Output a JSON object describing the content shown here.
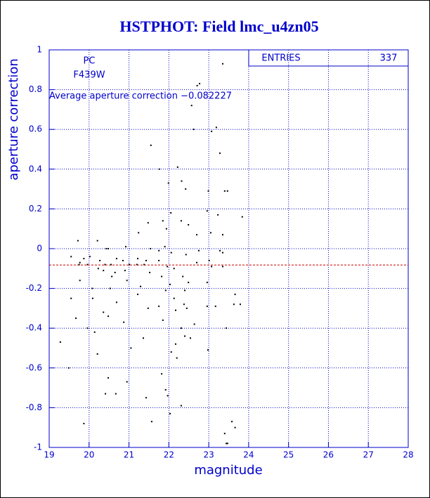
{
  "chart_data": {
    "type": "scatter",
    "title": "HSTPHOT: Field lmc_u4zn05",
    "x_label": "magnitude",
    "y_label": "aperture correction",
    "annotations": [
      "PC",
      "F439W",
      "Average aperture correction −0.082227"
    ],
    "stats": {
      "label": "ENTRIES",
      "value": 337
    },
    "average_line": {
      "value": -0.082227,
      "color": "#cc0000"
    },
    "xlim": [
      19,
      28
    ],
    "xticks": [
      19,
      20,
      21,
      22,
      23,
      24,
      25,
      26,
      27,
      28
    ],
    "ylim": [
      -1,
      1
    ],
    "yticks": [
      -1,
      -0.8,
      -0.6,
      -0.4,
      -0.2,
      0,
      0.2,
      0.4,
      0.6,
      0.8,
      1
    ],
    "grid": true,
    "color": "#000000",
    "x": [
      23.35,
      22.77,
      22.71,
      22.57,
      22.62,
      23.07,
      23.19,
      23.28,
      21.55,
      22.22,
      21.76,
      22.32,
      21.99,
      22.99,
      23.4,
      23.47,
      22.42,
      22.05,
      22.96,
      23.23,
      23.84,
      21.85,
      22.49,
      22.31,
      21.48,
      21.94,
      21.24,
      23.35,
      22.7,
      23.05,
      19.72,
      20.21,
      20.43,
      20.48,
      20.92,
      21.54,
      21.75,
      21.9,
      22.06,
      22.43,
      22.75,
      23.28,
      23.35,
      19.55,
      19.87,
      20.02,
      20.27,
      20.69,
      20.85,
      21.22,
      21.43,
      21.75,
      22.7,
      23.01,
      19.77,
      19.75,
      19.96,
      20.4,
      20.55,
      21.01,
      21.2,
      21.38,
      21.96,
      22.13,
      23.07,
      23.35,
      20.23,
      20.36,
      20.65,
      20.9,
      21.52,
      21.82,
      22.35,
      20.57,
      20.95,
      19.77,
      22.03,
      22.49,
      22.96,
      20.08,
      20.53,
      21.29,
      21.92,
      22.4,
      21.22,
      23.66,
      23.79,
      23.63,
      22.13,
      19.55,
      20.09,
      20.69,
      22.38,
      21.75,
      21.48,
      22.96,
      23.17,
      22.17,
      22.45,
      20.36,
      20.48,
      21.85,
      20.87,
      19.67,
      22.31,
      22.64,
      23.44,
      19.96,
      20.14,
      22.4,
      22.54,
      21.36,
      19.28,
      22.17,
      22.06,
      22.98,
      21.05,
      20.21,
      22.2,
      19.49,
      21.82,
      20.95,
      20.48,
      21.92,
      20.67,
      20.41,
      21.97,
      21.43,
      22.31,
      22.03,
      21.57,
      19.87,
      23.58,
      23.4,
      23.44,
      23.47,
      23.66
    ],
    "y": [
      0.93,
      0.83,
      0.82,
      0.72,
      0.6,
      0.59,
      0.61,
      0.48,
      0.52,
      0.41,
      0.4,
      0.34,
      0.33,
      0.29,
      0.29,
      0.29,
      0.3,
      0.18,
      0.19,
      0.17,
      0.16,
      0.14,
      0.12,
      0.14,
      0.13,
      0.1,
      0.08,
      0.07,
      0.07,
      0.08,
      0.04,
      0.04,
      0.0,
      0.0,
      0.01,
      0.0,
      -0.01,
      0.01,
      -0.02,
      -0.03,
      -0.01,
      -0.01,
      -0.02,
      -0.04,
      -0.05,
      -0.04,
      -0.06,
      -0.05,
      -0.06,
      -0.05,
      -0.06,
      -0.06,
      -0.07,
      -0.06,
      -0.07,
      -0.08,
      -0.08,
      -0.08,
      -0.08,
      -0.08,
      -0.08,
      -0.08,
      -0.09,
      -0.1,
      -0.09,
      -0.09,
      -0.1,
      -0.11,
      -0.12,
      -0.11,
      -0.12,
      -0.14,
      -0.14,
      -0.14,
      -0.16,
      -0.16,
      -0.18,
      -0.17,
      -0.17,
      -0.2,
      -0.2,
      -0.19,
      -0.21,
      -0.21,
      -0.23,
      -0.23,
      -0.28,
      -0.28,
      -0.25,
      -0.25,
      -0.25,
      -0.27,
      -0.28,
      -0.29,
      -0.3,
      -0.29,
      -0.29,
      -0.31,
      -0.3,
      -0.32,
      -0.34,
      -0.36,
      -0.37,
      -0.35,
      -0.4,
      -0.38,
      -0.4,
      -0.4,
      -0.42,
      -0.44,
      -0.45,
      -0.45,
      -0.47,
      -0.48,
      -0.52,
      -0.51,
      -0.5,
      -0.53,
      -0.55,
      -0.6,
      -0.63,
      -0.67,
      -0.65,
      -0.71,
      -0.73,
      -0.73,
      -0.74,
      -0.75,
      -0.79,
      -0.83,
      -0.87,
      -0.88,
      -0.87,
      -0.93,
      -0.98,
      -0.98,
      -0.9
    ]
  }
}
